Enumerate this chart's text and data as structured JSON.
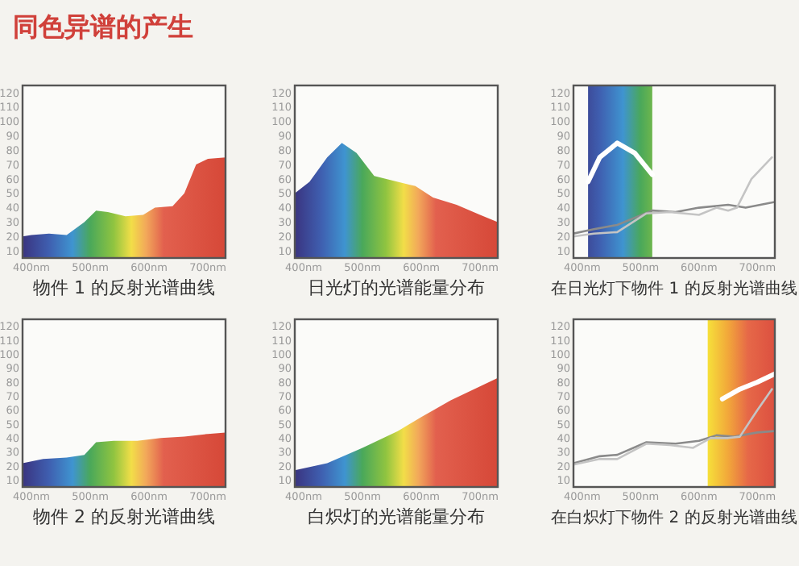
{
  "chart_data": [
    {
      "type": "area",
      "title": "同色异谱的产生",
      "xlabel": "物件 1 的反射光谱曲线",
      "xlim": [
        385,
        730
      ],
      "ylim": [
        5,
        125
      ],
      "xticks": [
        {
          "value": 400,
          "label": "400nm"
        },
        {
          "value": 500,
          "label": "500nm"
        },
        {
          "value": 600,
          "label": "600nm"
        },
        {
          "value": 700,
          "label": "700nm"
        }
      ],
      "yticks": [
        10,
        20,
        30,
        40,
        50,
        60,
        70,
        80,
        90,
        100,
        110,
        120
      ],
      "x": [
        385,
        400,
        430,
        460,
        490,
        510,
        530,
        560,
        590,
        610,
        640,
        660,
        680,
        700,
        730
      ],
      "values": [
        20,
        21,
        22,
        21,
        30,
        38,
        37,
        34,
        35,
        40,
        41,
        50,
        70,
        74,
        75
      ]
    },
    {
      "type": "area",
      "xlabel": "日光灯的光谱能量分布",
      "xlim": [
        385,
        730
      ],
      "ylim": [
        5,
        125
      ],
      "xticks": [
        {
          "value": 400,
          "label": "400nm"
        },
        {
          "value": 500,
          "label": "500nm"
        },
        {
          "value": 600,
          "label": "600nm"
        },
        {
          "value": 700,
          "label": "700nm"
        }
      ],
      "yticks": [
        10,
        20,
        30,
        40,
        50,
        60,
        70,
        80,
        90,
        100,
        110,
        120
      ],
      "x": [
        385,
        410,
        440,
        465,
        490,
        520,
        560,
        590,
        620,
        660,
        700,
        730
      ],
      "values": [
        50,
        58,
        75,
        85,
        78,
        62,
        58,
        55,
        47,
        42,
        35,
        30
      ]
    },
    {
      "type": "line",
      "xlabel": "在日光灯下物件 1 的反射光谱曲线",
      "xlim": [
        385,
        730
      ],
      "ylim": [
        5,
        125
      ],
      "xticks": [
        {
          "value": 400,
          "label": "400nm"
        },
        {
          "value": 500,
          "label": "500nm"
        },
        {
          "value": 600,
          "label": "600nm"
        },
        {
          "value": 700,
          "label": "700nm"
        }
      ],
      "yticks": [
        10,
        20,
        30,
        40,
        50,
        60,
        70,
        80,
        90,
        100,
        110,
        120
      ],
      "bands": [
        {
          "axis": "x",
          "from": 410,
          "to": 520
        }
      ],
      "series": [
        {
          "color": "#ffffff",
          "x": [
            410,
            430,
            460,
            490,
            520
          ],
          "values": [
            58,
            75,
            85,
            78,
            63
          ]
        },
        {
          "color": "#8a8a8a",
          "x": [
            385,
            420,
            460,
            520,
            560,
            600,
            650,
            680,
            730
          ],
          "values": [
            22,
            25,
            28,
            38,
            37,
            40,
            42,
            40,
            44
          ]
        },
        {
          "color": "#c4c4c4",
          "x": [
            385,
            420,
            460,
            510,
            550,
            600,
            630,
            650,
            665,
            690,
            725
          ],
          "values": [
            20,
            22,
            23,
            36,
            37,
            35,
            40,
            38,
            40,
            60,
            75
          ]
        }
      ]
    },
    {
      "type": "area",
      "xlabel": "物件 2 的反射光谱曲线",
      "xlim": [
        385,
        730
      ],
      "ylim": [
        5,
        125
      ],
      "xticks": [
        {
          "value": 400,
          "label": "400nm"
        },
        {
          "value": 500,
          "label": "500nm"
        },
        {
          "value": 600,
          "label": "600nm"
        },
        {
          "value": 700,
          "label": "700nm"
        }
      ],
      "yticks": [
        10,
        20,
        30,
        40,
        50,
        60,
        70,
        80,
        90,
        100,
        110,
        120
      ],
      "x": [
        385,
        420,
        460,
        490,
        510,
        540,
        580,
        620,
        660,
        700,
        730
      ],
      "values": [
        22,
        25,
        26,
        28,
        37,
        38,
        38,
        40,
        41,
        43,
        44
      ]
    },
    {
      "type": "area",
      "xlabel": "白炽灯的光谱能量分布",
      "xlim": [
        385,
        730
      ],
      "ylim": [
        5,
        125
      ],
      "xticks": [
        {
          "value": 400,
          "label": "400nm"
        },
        {
          "value": 500,
          "label": "500nm"
        },
        {
          "value": 600,
          "label": "600nm"
        },
        {
          "value": 700,
          "label": "700nm"
        }
      ],
      "yticks": [
        10,
        20,
        30,
        40,
        50,
        60,
        70,
        80,
        90,
        100,
        110,
        120
      ],
      "x": [
        385,
        440,
        500,
        560,
        600,
        650,
        730
      ],
      "values": [
        17,
        22,
        33,
        45,
        55,
        67,
        83
      ]
    },
    {
      "type": "line",
      "xlabel": "在白炽灯下物件 2 的反射光谱曲线",
      "xlim": [
        385,
        730
      ],
      "ylim": [
        5,
        125
      ],
      "xticks": [
        {
          "value": 400,
          "label": "400nm"
        },
        {
          "value": 500,
          "label": "500nm"
        },
        {
          "value": 600,
          "label": "600nm"
        },
        {
          "value": 700,
          "label": "700nm"
        }
      ],
      "yticks": [
        10,
        20,
        30,
        40,
        50,
        60,
        70,
        80,
        90,
        100,
        110,
        120
      ],
      "bands": [
        {
          "axis": "x",
          "from": 615,
          "to": 730
        }
      ],
      "series": [
        {
          "color": "#ffffff",
          "x": [
            640,
            670,
            700,
            730
          ],
          "values": [
            68,
            75,
            80,
            86
          ]
        },
        {
          "color": "#8a8a8a",
          "x": [
            385,
            430,
            460,
            510,
            560,
            600,
            630,
            660,
            700,
            730
          ],
          "values": [
            22,
            27,
            28,
            37,
            36,
            38,
            42,
            41,
            44,
            45
          ]
        },
        {
          "color": "#c4c4c4",
          "x": [
            385,
            430,
            460,
            510,
            550,
            590,
            620,
            650,
            670,
            700,
            725
          ],
          "values": [
            21,
            25,
            25,
            36,
            35,
            33,
            40,
            40,
            41,
            60,
            75
          ]
        }
      ]
    }
  ]
}
